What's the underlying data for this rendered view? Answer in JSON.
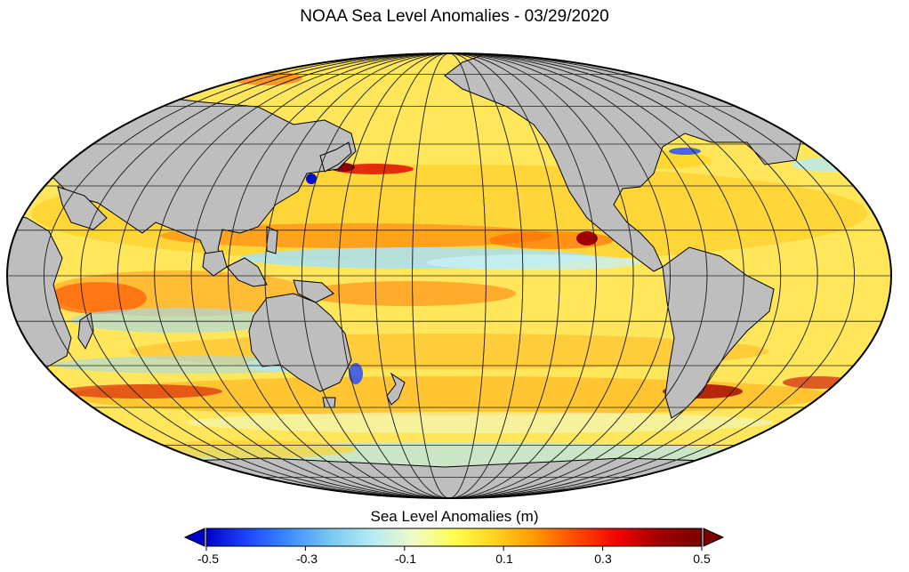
{
  "title": "NOAA Sea Level Anomalies - 03/29/2020",
  "colorbar": {
    "label": "Sea Level Anomalies (m)",
    "ticks": [
      "-0.5",
      "-0.3",
      "-0.1",
      "0.1",
      "0.3",
      "0.5"
    ],
    "min": -0.5,
    "max": 0.5,
    "extend": "both",
    "stops": [
      "#0000c8",
      "#1e46ff",
      "#3c8cff",
      "#78c8f0",
      "#b4ebf5",
      "#f0fac8",
      "#ffff50",
      "#ffd21e",
      "#ff9600",
      "#ff4600",
      "#f00000",
      "#a00000",
      "#780000"
    ]
  },
  "map": {
    "projection": "Mollweide",
    "center_longitude": -150,
    "land_color": "#bebebe",
    "ocean_background": "#ffe65a",
    "grid": true
  }
}
